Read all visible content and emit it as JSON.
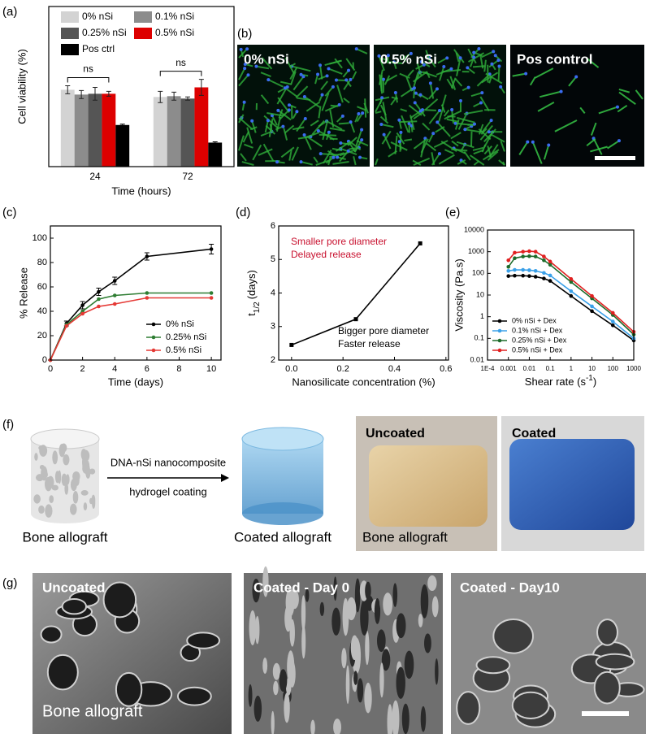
{
  "figure": {
    "b": {
      "label": "(b)",
      "images": [
        "0% nSi",
        "0.5% nSi",
        "Pos control"
      ]
    },
    "f": {
      "label": "(f)",
      "left_caption": "Bone allograft",
      "arrow_top": "DNA-nSi nanocomposite",
      "arrow_bottom": "hydrogel coating",
      "right_caption": "Coated allograft",
      "photos": [
        "Uncoated",
        "Coated"
      ],
      "photo_caption": "Bone allograft"
    },
    "g": {
      "label": "(g)",
      "images": [
        "Uncoated",
        "Coated - Day 0",
        "Coated - Day10"
      ],
      "caption": "Bone allograft"
    }
  },
  "chart_data": [
    {
      "type": "bar",
      "label": "(a)",
      "ylabel": "Cell viability (%)",
      "xlabel": "Time (hours)",
      "categories": [
        "24",
        "72"
      ],
      "ylim": [
        0,
        200
      ],
      "legend": "upper left",
      "series": [
        {
          "name": "0% nSi",
          "color": "#d3d3d3",
          "values": [
            96,
            87
          ],
          "errors": [
            5,
            7
          ]
        },
        {
          "name": "0.1% nSi",
          "color": "#8c8c8c",
          "values": [
            90,
            88
          ],
          "errors": [
            5,
            5
          ]
        },
        {
          "name": "0.25% nSi",
          "color": "#555555",
          "values": [
            91,
            85
          ],
          "errors": [
            8,
            2
          ]
        },
        {
          "name": "0.5% nSi",
          "color": "#dd0000",
          "values": [
            91,
            99
          ],
          "errors": [
            3,
            10
          ]
        },
        {
          "name": "Pos ctrl",
          "color": "#000000",
          "values": [
            52,
            30
          ],
          "errors": [
            1,
            1
          ]
        }
      ],
      "annotations": [
        {
          "text": "ns"
        },
        {
          "text": "ns"
        }
      ]
    },
    {
      "type": "line",
      "label": "(c)",
      "ylabel": "% Release",
      "xlabel": "Time (days)",
      "x": [
        0,
        1,
        2,
        3,
        4,
        6,
        10
      ],
      "xlim": [
        0,
        10.6
      ],
      "xticks": [
        0,
        2,
        4,
        6,
        8,
        10
      ],
      "ylim": [
        0,
        110
      ],
      "yticks": [
        0,
        20,
        40,
        60,
        80,
        100
      ],
      "legend": "lower right",
      "marker": "circle",
      "series": [
        {
          "name": "0% nSi",
          "color": "#000000",
          "values": [
            0,
            30,
            45,
            56,
            65,
            85,
            91
          ],
          "errors": [
            0,
            2,
            3,
            3,
            3,
            3,
            4
          ]
        },
        {
          "name": "0.25% nSi",
          "color": "#2e7d32",
          "values": [
            0,
            29,
            40,
            50,
            53,
            55,
            55
          ]
        },
        {
          "name": "0.5% nSi",
          "color": "#e53935",
          "values": [
            0,
            28,
            38,
            44,
            46,
            51,
            51
          ]
        }
      ]
    },
    {
      "type": "line",
      "label": "(d)",
      "ylabel": {
        "text": "t",
        "sub": "1/2",
        "after": "(days)"
      },
      "xlabel": "Nanosilicate concentration (%)",
      "x": [
        0,
        0.25,
        0.5
      ],
      "xlim": [
        -0.05,
        0.61
      ],
      "xticks": [
        {
          "value": 0,
          "label": "0.0"
        },
        0.2,
        0.4,
        0.6
      ],
      "ylim": [
        2,
        6
      ],
      "yticks": [
        2,
        3,
        4,
        5,
        6
      ],
      "marker": "square",
      "series": [
        {
          "color": "#000000",
          "values": [
            2.45,
            3.22,
            5.48
          ]
        }
      ],
      "annotations": [
        {
          "text": "Smaller pore diameter",
          "color": "#c8102e"
        },
        {
          "text": "Delayed release",
          "color": "#c8102e"
        },
        {
          "text": "Bigger pore diameter",
          "color": "#000000"
        },
        {
          "text": "Faster release",
          "color": "#000000"
        }
      ]
    },
    {
      "type": "line",
      "label": "(e)",
      "ylabel": "Viscosity (Pa.s)",
      "xlabel": {
        "text": "Shear rate (s",
        "sup": "-1",
        "after": ")"
      },
      "xscale": "log",
      "yscale": "log",
      "x": [
        0.001,
        0.002,
        0.005,
        0.01,
        0.02,
        0.05,
        0.1,
        1,
        10,
        100,
        1000
      ],
      "xlim": [
        0.0001,
        1000
      ],
      "xticks": [
        {
          "value": 0.0001,
          "label": "1E-4"
        },
        0.001,
        0.01,
        0.1,
        1,
        10,
        100,
        1000
      ],
      "ylim": [
        0.01,
        10000
      ],
      "yticks": [
        0.01,
        0.1,
        1,
        10,
        100,
        1000,
        10000
      ],
      "legend": "lower left",
      "marker": "circle",
      "series": [
        {
          "name": "0% nSi + Dex",
          "color": "#000000",
          "values": [
            75,
            78,
            78,
            75,
            70,
            58,
            45,
            9,
            1.8,
            0.4,
            0.08
          ]
        },
        {
          "name": "0.1% nSi + Dex",
          "color": "#3aa0e8",
          "values": [
            130,
            145,
            145,
            140,
            130,
            105,
            80,
            15,
            3,
            0.6,
            0.1
          ]
        },
        {
          "name": "0.25% nSi + Dex",
          "color": "#1d6b2a",
          "values": [
            200,
            500,
            600,
            620,
            600,
            400,
            250,
            40,
            7,
            1.2,
            0.15
          ]
        },
        {
          "name": "0.5% nSi + Dex",
          "color": "#e02020",
          "values": [
            400,
            900,
            1000,
            1050,
            1000,
            600,
            350,
            55,
            9,
            1.5,
            0.2
          ]
        }
      ]
    }
  ]
}
